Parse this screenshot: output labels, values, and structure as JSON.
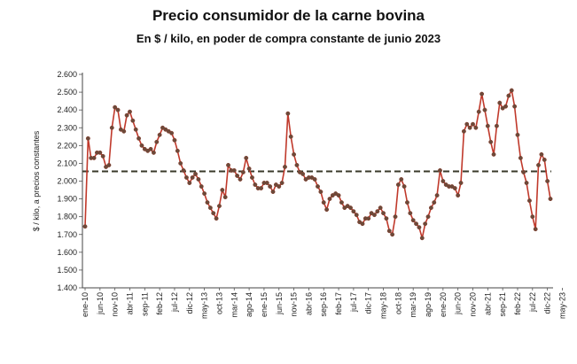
{
  "chart_data": {
    "type": "line",
    "title": "Precio consumidor de la carne bovina",
    "subtitle": "En $ / kilo, en poder de compra constante de junio 2023",
    "ylabel": "$ / kilo, a precios constantes",
    "xlabel": "",
    "ylim": [
      1400,
      2600
    ],
    "y_ticks": [
      "1.400",
      "1.500",
      "1.600",
      "1.700",
      "1.800",
      "1.900",
      "2.000",
      "2.100",
      "2.200",
      "2.300",
      "2.400",
      "2.500",
      "2.600"
    ],
    "x_tick_labels": [
      "ene-10",
      "jun-10",
      "nov-10",
      "abr-11",
      "sep-11",
      "feb-12",
      "jul-12",
      "dic-12",
      "may-13",
      "oct-13",
      "mar-14",
      "ago-14",
      "ene-15",
      "jun-15",
      "nov-15",
      "abr-16",
      "sep-16",
      "feb-17",
      "jul-17",
      "dic-17",
      "may-18",
      "oct-18",
      "mar-19",
      "ago-19",
      "ene-20",
      "jun-20",
      "nov-20",
      "abr-21",
      "sep-21",
      "feb-22",
      "jul-22",
      "dic-22",
      "may-23"
    ],
    "reference_line": {
      "value": 2055,
      "style": "dashed"
    },
    "series": [
      {
        "name": "Precio consumidor",
        "anchors": [
          [
            0,
            1745
          ],
          [
            1,
            2240
          ],
          [
            2,
            2130
          ],
          [
            3,
            2130
          ],
          [
            4,
            2160
          ],
          [
            5,
            2160
          ],
          [
            6,
            2140
          ],
          [
            7,
            2080
          ],
          [
            8,
            2090
          ],
          [
            9,
            2300
          ],
          [
            10,
            2415
          ],
          [
            11,
            2400
          ],
          [
            12,
            2290
          ],
          [
            13,
            2280
          ],
          [
            14,
            2370
          ],
          [
            15,
            2390
          ],
          [
            16,
            2340
          ],
          [
            17,
            2290
          ],
          [
            18,
            2240
          ],
          [
            19,
            2200
          ],
          [
            20,
            2180
          ],
          [
            21,
            2170
          ],
          [
            22,
            2180
          ],
          [
            23,
            2160
          ],
          [
            24,
            2220
          ],
          [
            25,
            2260
          ],
          [
            26,
            2300
          ],
          [
            27,
            2290
          ],
          [
            28,
            2280
          ],
          [
            29,
            2270
          ],
          [
            30,
            2230
          ],
          [
            31,
            2170
          ],
          [
            32,
            2100
          ],
          [
            33,
            2060
          ],
          [
            34,
            2020
          ],
          [
            35,
            1990
          ],
          [
            36,
            2020
          ],
          [
            37,
            2040
          ],
          [
            38,
            2010
          ],
          [
            39,
            1970
          ],
          [
            40,
            1930
          ],
          [
            41,
            1880
          ],
          [
            42,
            1850
          ],
          [
            43,
            1820
          ],
          [
            44,
            1790
          ],
          [
            45,
            1860
          ],
          [
            46,
            1950
          ],
          [
            47,
            1910
          ],
          [
            48,
            2090
          ],
          [
            49,
            2060
          ],
          [
            50,
            2060
          ],
          [
            51,
            2030
          ],
          [
            52,
            2010
          ],
          [
            53,
            2050
          ],
          [
            54,
            2130
          ],
          [
            55,
            2070
          ],
          [
            56,
            2020
          ],
          [
            57,
            1980
          ],
          [
            58,
            1960
          ],
          [
            59,
            1960
          ],
          [
            60,
            1990
          ],
          [
            61,
            1990
          ],
          [
            62,
            1970
          ],
          [
            63,
            1940
          ],
          [
            64,
            1980
          ],
          [
            65,
            1970
          ],
          [
            66,
            1990
          ],
          [
            67,
            2080
          ],
          [
            68,
            2380
          ],
          [
            69,
            2250
          ],
          [
            70,
            2150
          ],
          [
            71,
            2090
          ],
          [
            72,
            2050
          ],
          [
            73,
            2040
          ],
          [
            74,
            2010
          ],
          [
            75,
            2020
          ],
          [
            76,
            2020
          ],
          [
            77,
            2010
          ],
          [
            78,
            1970
          ],
          [
            79,
            1940
          ],
          [
            80,
            1880
          ],
          [
            81,
            1840
          ],
          [
            82,
            1900
          ],
          [
            83,
            1920
          ],
          [
            84,
            1930
          ],
          [
            85,
            1920
          ],
          [
            86,
            1880
          ],
          [
            87,
            1850
          ],
          [
            88,
            1860
          ],
          [
            89,
            1850
          ],
          [
            90,
            1830
          ],
          [
            91,
            1810
          ],
          [
            92,
            1770
          ],
          [
            93,
            1760
          ],
          [
            94,
            1790
          ],
          [
            95,
            1790
          ],
          [
            96,
            1820
          ],
          [
            97,
            1810
          ],
          [
            98,
            1830
          ],
          [
            99,
            1850
          ],
          [
            100,
            1820
          ],
          [
            101,
            1790
          ],
          [
            102,
            1720
          ],
          [
            103,
            1700
          ],
          [
            104,
            1800
          ],
          [
            105,
            1980
          ],
          [
            106,
            2010
          ],
          [
            107,
            1970
          ],
          [
            108,
            1880
          ],
          [
            109,
            1820
          ],
          [
            110,
            1780
          ],
          [
            111,
            1760
          ],
          [
            112,
            1740
          ],
          [
            113,
            1680
          ],
          [
            114,
            1760
          ],
          [
            115,
            1800
          ],
          [
            116,
            1850
          ],
          [
            117,
            1880
          ],
          [
            118,
            1920
          ],
          [
            119,
            2060
          ],
          [
            120,
            2000
          ],
          [
            121,
            1980
          ],
          [
            122,
            1970
          ],
          [
            123,
            1970
          ],
          [
            124,
            1960
          ],
          [
            125,
            1920
          ],
          [
            126,
            1990
          ],
          [
            127,
            2280
          ],
          [
            128,
            2320
          ],
          [
            129,
            2300
          ],
          [
            130,
            2320
          ],
          [
            131,
            2300
          ],
          [
            132,
            2390
          ],
          [
            133,
            2490
          ],
          [
            134,
            2400
          ],
          [
            135,
            2310
          ],
          [
            136,
            2220
          ],
          [
            137,
            2150
          ],
          [
            138,
            2310
          ],
          [
            139,
            2440
          ],
          [
            140,
            2410
          ],
          [
            141,
            2420
          ],
          [
            142,
            2480
          ],
          [
            143,
            2510
          ],
          [
            144,
            2420
          ],
          [
            145,
            2260
          ],
          [
            146,
            2130
          ],
          [
            147,
            2050
          ],
          [
            148,
            1990
          ],
          [
            149,
            1890
          ],
          [
            150,
            1800
          ],
          [
            151,
            1730
          ],
          [
            152,
            2090
          ],
          [
            153,
            2150
          ],
          [
            154,
            2120
          ],
          [
            155,
            2000
          ],
          [
            156,
            1900
          ]
        ]
      }
    ]
  }
}
